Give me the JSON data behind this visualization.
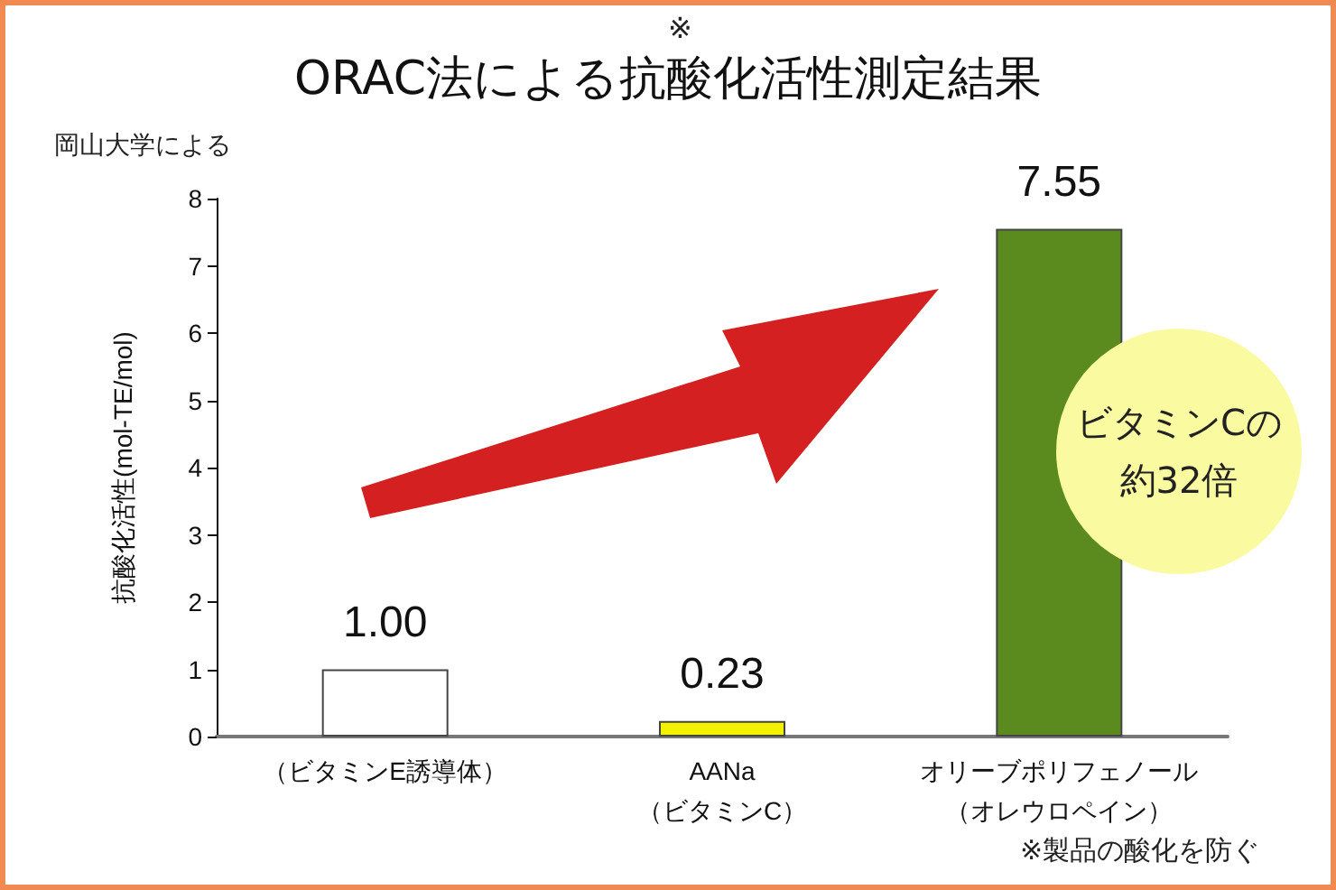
{
  "chart_data": {
    "type": "bar",
    "title": "ORAC法による抗酸化活性測定結果",
    "ylabel": "抗酸化活性(mol-TE/mol)",
    "categories": [
      "（ビタミンE誘導体）",
      "AANa（ビタミンC）",
      "オリーブポリフェノール（オレウロペイン）"
    ],
    "values": [
      1.0,
      0.23,
      7.55
    ],
    "value_labels": [
      "1.00",
      "0.23",
      "7.55"
    ],
    "colors": [
      "#ffffff",
      "#f2f200",
      "#5b8a1e"
    ],
    "ylim": [
      0,
      8
    ],
    "yticks": [
      0,
      1,
      2,
      3,
      4,
      5,
      6,
      7,
      8
    ],
    "grid": false,
    "annotations": [
      "※",
      "岡山大学による",
      "ビタミンCの約32倍",
      "※製品の酸化を防ぐ"
    ]
  }
}
